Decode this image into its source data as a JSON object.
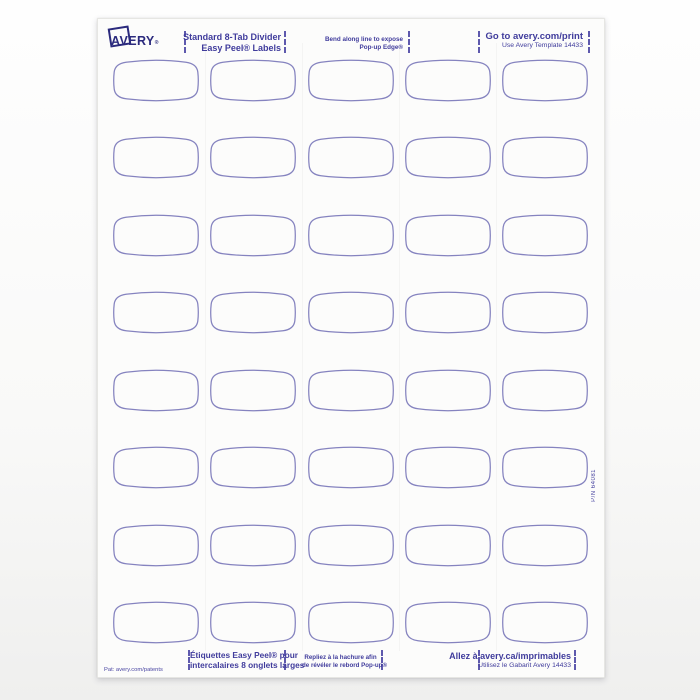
{
  "sheet": {
    "header": {
      "brand": {
        "logo_text": "AVERY",
        "logo_reg": "®"
      },
      "product_title": {
        "line1": "Standard 8-Tab Divider",
        "line2": "Easy Peel® Labels"
      },
      "bend_instruction": {
        "line1": "Bend along line to expose",
        "line2": "Pop-up Edge®"
      },
      "web_info": {
        "line1": "Go to avery.com/print",
        "line2": "Use Avery Template 14433"
      }
    },
    "footer": {
      "patent": "Pat: avery.com/patents",
      "product_title_fr": {
        "line1": "Étiquettes Easy Peel® pour",
        "line2": "intercalaires 8 onglets larges"
      },
      "bend_instruction_fr": {
        "line1": "Repliez à la hachure afin",
        "line2": "de révéler le rebord Pop-up®"
      },
      "web_info_fr": {
        "line1": "Allez à avery.ca/imprimables",
        "line2": "Utilisez le Gabarit Avery 14433"
      }
    },
    "side": {
      "part_number": "P/N 64081"
    },
    "labels_grid": {
      "rows": 8,
      "columns": 5,
      "total_labels": 40,
      "label_state": "blank"
    },
    "colors": {
      "brand_navy": "#2b2a7d",
      "ink_indigo": "#403c9c",
      "label_outline": "#8583bf",
      "sheet_white": "#fcfcfb"
    }
  }
}
